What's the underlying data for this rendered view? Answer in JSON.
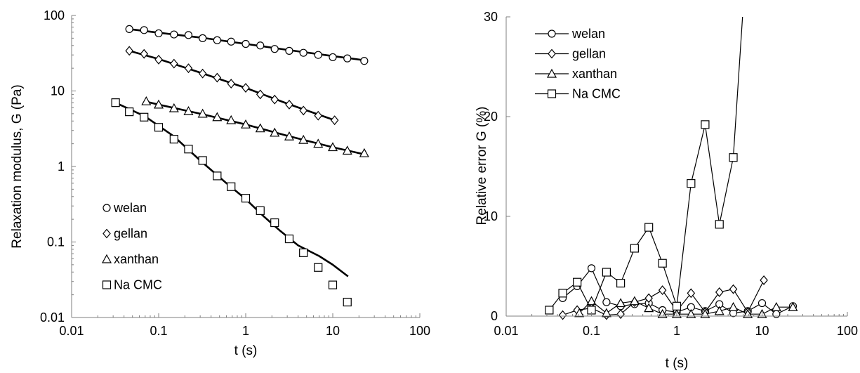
{
  "chart_data": [
    {
      "type": "scatter",
      "title": "",
      "xlabel": "t (s)",
      "ylabel": "Relaxation modulus, G (Pa)",
      "xscale": "log",
      "yscale": "log",
      "xlim": [
        0.01,
        100
      ],
      "ylim": [
        0.01,
        100
      ],
      "x_tick_labels": [
        "0.01",
        "0.1",
        "1",
        "10",
        "100"
      ],
      "y_tick_labels": [
        "0.01",
        "0.1",
        "1",
        "10",
        "100"
      ],
      "grid": false,
      "legend": {
        "placement": "bottom-left",
        "entries": [
          "welan",
          "gellan",
          "xanthan",
          "Na CMC"
        ]
      },
      "series": [
        {
          "name": "welan",
          "marker": "circle",
          "points": [
            [
              0.046,
              66
            ],
            [
              0.068,
              64
            ],
            [
              0.1,
              58
            ],
            [
              0.15,
              56
            ],
            [
              0.22,
              55
            ],
            [
              0.32,
              50
            ],
            [
              0.47,
              47
            ],
            [
              0.68,
              45
            ],
            [
              1.0,
              42
            ],
            [
              1.47,
              40
            ],
            [
              2.15,
              36
            ],
            [
              3.16,
              34
            ],
            [
              4.6,
              32
            ],
            [
              6.8,
              30
            ],
            [
              10.0,
              28
            ],
            [
              14.7,
              27
            ],
            [
              23.0,
              25
            ]
          ],
          "fit": [
            [
              0.046,
              66
            ],
            [
              0.1,
              59
            ],
            [
              0.3,
              51
            ],
            [
              1.0,
              42
            ],
            [
              3.0,
              35
            ],
            [
              10.0,
              29
            ],
            [
              23.0,
              25.5
            ]
          ]
        },
        {
          "name": "gellan",
          "marker": "diamond",
          "points": [
            [
              0.046,
              34
            ],
            [
              0.068,
              31
            ],
            [
              0.1,
              26
            ],
            [
              0.15,
              23
            ],
            [
              0.22,
              20
            ],
            [
              0.32,
              17
            ],
            [
              0.47,
              15
            ],
            [
              0.68,
              12.5
            ],
            [
              1.0,
              11
            ],
            [
              1.47,
              9
            ],
            [
              2.15,
              7.7
            ],
            [
              3.16,
              6.6
            ],
            [
              4.6,
              5.5
            ],
            [
              6.8,
              4.7
            ],
            [
              10.5,
              4.1
            ]
          ],
          "fit": [
            [
              0.046,
              34
            ],
            [
              0.1,
              26.5
            ],
            [
              0.3,
              17.5
            ],
            [
              1.0,
              11
            ],
            [
              3.0,
              6.8
            ],
            [
              10.5,
              4.1
            ]
          ]
        },
        {
          "name": "xanthan",
          "marker": "triangle",
          "points": [
            [
              0.072,
              7.3
            ],
            [
              0.1,
              6.6
            ],
            [
              0.15,
              5.9
            ],
            [
              0.22,
              5.4
            ],
            [
              0.32,
              5.0
            ],
            [
              0.47,
              4.5
            ],
            [
              0.68,
              4.1
            ],
            [
              1.0,
              3.6
            ],
            [
              1.47,
              3.2
            ],
            [
              2.15,
              2.8
            ],
            [
              3.16,
              2.5
            ],
            [
              4.6,
              2.25
            ],
            [
              6.8,
              2.0
            ],
            [
              10.0,
              1.8
            ],
            [
              14.7,
              1.62
            ],
            [
              23.0,
              1.5
            ]
          ],
          "fit": [
            [
              0.072,
              7.2
            ],
            [
              0.1,
              6.6
            ],
            [
              0.3,
              5.0
            ],
            [
              1.0,
              3.6
            ],
            [
              3.0,
              2.55
            ],
            [
              10.0,
              1.8
            ],
            [
              23.0,
              1.45
            ]
          ]
        },
        {
          "name": "Na CMC",
          "marker": "square",
          "points": [
            [
              0.032,
              7.0
            ],
            [
              0.046,
              5.3
            ],
            [
              0.068,
              4.5
            ],
            [
              0.1,
              3.3
            ],
            [
              0.15,
              2.3
            ],
            [
              0.22,
              1.7
            ],
            [
              0.32,
              1.2
            ],
            [
              0.47,
              0.75
            ],
            [
              0.68,
              0.54
            ],
            [
              1.0,
              0.38
            ],
            [
              1.47,
              0.26
            ],
            [
              2.15,
              0.18
            ],
            [
              3.16,
              0.11
            ],
            [
              4.6,
              0.072
            ],
            [
              6.8,
              0.046
            ],
            [
              10.0,
              0.027
            ],
            [
              14.7,
              0.016
            ]
          ],
          "fit": [
            [
              0.032,
              7.0
            ],
            [
              0.07,
              4.6
            ],
            [
              0.15,
              2.5
            ],
            [
              0.3,
              1.2
            ],
            [
              0.6,
              0.6
            ],
            [
              1.0,
              0.37
            ],
            [
              1.6,
              0.22
            ],
            [
              2.5,
              0.14
            ],
            [
              4.0,
              0.09
            ],
            [
              7.0,
              0.065
            ],
            [
              10.0,
              0.05
            ],
            [
              15.0,
              0.035
            ]
          ]
        }
      ]
    },
    {
      "type": "line",
      "title": "",
      "xlabel": "t (s)",
      "ylabel": "Relative error G (%)",
      "xscale": "log",
      "yscale": "linear",
      "xlim": [
        0.01,
        100
      ],
      "ylim": [
        0,
        30
      ],
      "x_tick_labels": [
        "0.01",
        "0.1",
        "1",
        "10",
        "100"
      ],
      "y_tick_labels": [
        "0",
        "10",
        "20",
        "30"
      ],
      "grid": false,
      "legend": {
        "placement": "top-left",
        "entries": [
          "welan",
          "gellan",
          "xanthan",
          "Na CMC"
        ]
      },
      "series": [
        {
          "name": "welan",
          "marker": "circle",
          "points": [
            [
              0.046,
              1.8
            ],
            [
              0.068,
              3.0
            ],
            [
              0.1,
              4.8
            ],
            [
              0.15,
              1.4
            ],
            [
              0.22,
              1.0
            ],
            [
              0.32,
              1.2
            ],
            [
              0.47,
              1.3
            ],
            [
              0.68,
              0.6
            ],
            [
              1.0,
              0.4
            ],
            [
              1.47,
              0.9
            ],
            [
              2.15,
              0.5
            ],
            [
              3.16,
              1.2
            ],
            [
              4.6,
              0.3
            ],
            [
              6.8,
              0.5
            ],
            [
              10.0,
              1.3
            ],
            [
              14.7,
              0.2
            ],
            [
              23.0,
              1.0
            ]
          ]
        },
        {
          "name": "gellan",
          "marker": "diamond",
          "points": [
            [
              0.046,
              0.1
            ],
            [
              0.068,
              0.6
            ],
            [
              0.1,
              0.8
            ],
            [
              0.15,
              0.1
            ],
            [
              0.22,
              0.2
            ],
            [
              0.32,
              1.4
            ],
            [
              0.47,
              1.8
            ],
            [
              0.68,
              2.6
            ],
            [
              1.0,
              0.5
            ],
            [
              1.47,
              2.3
            ],
            [
              2.15,
              0.4
            ],
            [
              3.16,
              2.4
            ],
            [
              4.6,
              2.7
            ],
            [
              6.8,
              0.4
            ],
            [
              10.5,
              3.6
            ]
          ]
        },
        {
          "name": "xanthan",
          "marker": "triangle",
          "points": [
            [
              0.072,
              0.3
            ],
            [
              0.1,
              1.5
            ],
            [
              0.15,
              0.3
            ],
            [
              0.22,
              1.3
            ],
            [
              0.32,
              1.5
            ],
            [
              0.47,
              0.8
            ],
            [
              0.68,
              0.2
            ],
            [
              1.0,
              0.2
            ],
            [
              1.47,
              0.2
            ],
            [
              2.15,
              0.2
            ],
            [
              3.16,
              0.5
            ],
            [
              4.6,
              0.9
            ],
            [
              6.8,
              0.2
            ],
            [
              10.0,
              0.2
            ],
            [
              14.7,
              0.9
            ],
            [
              23.0,
              0.9
            ]
          ]
        },
        {
          "name": "Na CMC",
          "marker": "square",
          "points": [
            [
              0.032,
              0.6
            ],
            [
              0.046,
              2.3
            ],
            [
              0.068,
              3.4
            ],
            [
              0.1,
              0.6
            ],
            [
              0.15,
              4.4
            ],
            [
              0.22,
              3.3
            ],
            [
              0.32,
              6.8
            ],
            [
              0.47,
              8.9
            ],
            [
              0.68,
              5.3
            ],
            [
              1.0,
              1.0
            ],
            [
              1.47,
              13.3
            ],
            [
              2.15,
              19.2
            ],
            [
              3.16,
              9.2
            ],
            [
              4.6,
              15.9
            ],
            [
              5.9,
              30
            ]
          ]
        }
      ]
    }
  ]
}
